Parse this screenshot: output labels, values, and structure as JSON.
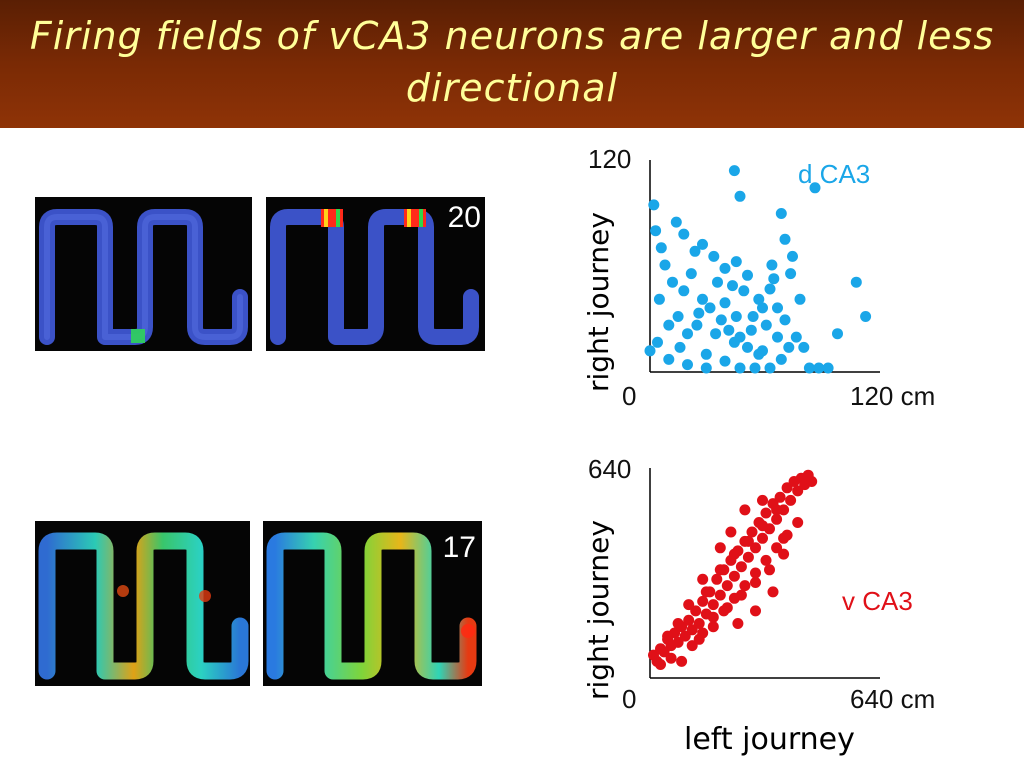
{
  "slide": {
    "title": "Firing fields of vCA3 neurons are larger and less directional",
    "shared_xlabel": "left journey"
  },
  "panels": {
    "top_right_number": "20",
    "bottom_right_number": "17"
  },
  "colors": {
    "title_text": "#ffff99",
    "title_bg": "#7a2a05",
    "dca3_points": "#1aa6e8",
    "vca3_points": "#e01018"
  },
  "chart_data": [
    {
      "type": "scatter",
      "title": "",
      "series": [
        {
          "name": "d CA3",
          "points": [
            [
              0,
              10
            ],
            [
              10,
              5
            ],
            [
              20,
              2
            ],
            [
              30,
              0
            ],
            [
              5,
              40
            ],
            [
              15,
              30
            ],
            [
              25,
              25
            ],
            [
              35,
              20
            ],
            [
              45,
              15
            ],
            [
              50,
              45
            ],
            [
              55,
              30
            ],
            [
              60,
              10
            ],
            [
              65,
              60
            ],
            [
              70,
              5
            ],
            [
              75,
              55
            ],
            [
              80,
              40
            ],
            [
              85,
              0
            ],
            [
              90,
              0
            ],
            [
              95,
              0
            ],
            [
              100,
              20
            ],
            [
              110,
              50
            ],
            [
              115,
              30
            ],
            [
              8,
              60
            ],
            [
              12,
              50
            ],
            [
              18,
              45
            ],
            [
              22,
              55
            ],
            [
              28,
              40
            ],
            [
              32,
              35
            ],
            [
              38,
              28
            ],
            [
              42,
              22
            ],
            [
              48,
              18
            ],
            [
              52,
              12
            ],
            [
              58,
              8
            ],
            [
              62,
              25
            ],
            [
              68,
              35
            ],
            [
              72,
              28
            ],
            [
              78,
              18
            ],
            [
              82,
              12
            ],
            [
              3,
              80
            ],
            [
              6,
              70
            ],
            [
              14,
              85
            ],
            [
              18,
              78
            ],
            [
              24,
              68
            ],
            [
              28,
              72
            ],
            [
              34,
              65
            ],
            [
              40,
              58
            ],
            [
              46,
              62
            ],
            [
              52,
              54
            ],
            [
              48,
              100
            ],
            [
              70,
              90
            ],
            [
              72,
              75
            ],
            [
              88,
              105
            ],
            [
              45,
              115
            ],
            [
              2,
              95
            ],
            [
              40,
              38
            ],
            [
              44,
              48
            ],
            [
              36,
              50
            ],
            [
              26,
              32
            ],
            [
              20,
              20
            ],
            [
              16,
              12
            ],
            [
              30,
              8
            ],
            [
              40,
              4
            ],
            [
              48,
              0
            ],
            [
              56,
              0
            ],
            [
              64,
              0
            ],
            [
              10,
              25
            ],
            [
              4,
              15
            ],
            [
              58,
              40
            ],
            [
              64,
              46
            ],
            [
              68,
              18
            ],
            [
              74,
              12
            ],
            [
              46,
              30
            ],
            [
              54,
              22
            ],
            [
              60,
              35
            ],
            [
              66,
              52
            ],
            [
              76,
              65
            ]
          ]
        }
      ],
      "xlabel": "left journey",
      "ylabel": "right journey",
      "xlim": [
        0,
        120
      ],
      "ylim": [
        0,
        120
      ],
      "x_ticks": [
        "0",
        "120 cm"
      ],
      "y_ticks": [
        "120"
      ],
      "annotation": "d CA3"
    },
    {
      "type": "scatter",
      "title": "",
      "series": [
        {
          "name": "v CA3",
          "points": [
            [
              10,
              60
            ],
            [
              20,
              40
            ],
            [
              30,
              80
            ],
            [
              40,
              70
            ],
            [
              50,
              110
            ],
            [
              60,
              90
            ],
            [
              70,
              130
            ],
            [
              80,
              100
            ],
            [
              90,
              150
            ],
            [
              100,
              120
            ],
            [
              110,
              170
            ],
            [
              120,
              140
            ],
            [
              130,
              200
            ],
            [
              140,
              160
            ],
            [
              150,
              230
            ],
            [
              160,
              190
            ],
            [
              170,
              260
            ],
            [
              180,
              220
            ],
            [
              190,
              300
            ],
            [
              200,
              250
            ],
            [
              210,
              330
            ],
            [
              220,
              280
            ],
            [
              230,
              360
            ],
            [
              240,
              310
            ],
            [
              250,
              390
            ],
            [
              260,
              340
            ],
            [
              270,
              420
            ],
            [
              280,
              370
            ],
            [
              290,
              450
            ],
            [
              300,
              400
            ],
            [
              310,
              480
            ],
            [
              320,
              430
            ],
            [
              330,
              510
            ],
            [
              340,
              460
            ],
            [
              350,
              540
            ],
            [
              360,
              490
            ],
            [
              370,
              560
            ],
            [
              380,
              520
            ],
            [
              390,
              590
            ],
            [
              400,
              550
            ],
            [
              410,
              610
            ],
            [
              420,
              580
            ],
            [
              430,
              620
            ],
            [
              440,
              600
            ],
            [
              450,
              630
            ],
            [
              460,
              610
            ],
            [
              30,
              30
            ],
            [
              60,
              50
            ],
            [
              90,
              40
            ],
            [
              120,
              90
            ],
            [
              150,
              130
            ],
            [
              180,
              150
            ],
            [
              210,
              200
            ],
            [
              240,
              240
            ],
            [
              270,
              280
            ],
            [
              300,
              320
            ],
            [
              330,
              360
            ],
            [
              360,
              400
            ],
            [
              390,
              440
            ],
            [
              420,
              480
            ],
            [
              160,
              260
            ],
            [
              200,
              330
            ],
            [
              240,
              380
            ],
            [
              280,
              420
            ],
            [
              320,
              470
            ],
            [
              360,
              520
            ],
            [
              140,
              110
            ],
            [
              180,
              180
            ],
            [
              220,
              210
            ],
            [
              260,
              250
            ],
            [
              300,
              290
            ],
            [
              340,
              330
            ],
            [
              380,
              380
            ],
            [
              250,
              160
            ],
            [
              300,
              200
            ],
            [
              350,
              260
            ],
            [
              380,
              430
            ],
            [
              320,
              550
            ],
            [
              270,
              520
            ],
            [
              230,
              450
            ],
            [
              200,
              400
            ],
            [
              150,
              300
            ],
            [
              110,
              220
            ],
            [
              80,
              160
            ],
            [
              50,
              120
            ]
          ]
        }
      ],
      "xlabel": "left journey",
      "ylabel": "right journey",
      "xlim": [
        0,
        640
      ],
      "ylim": [
        0,
        640
      ],
      "x_ticks": [
        "0",
        "640 cm"
      ],
      "y_ticks": [
        "640"
      ],
      "annotation": "v CA3"
    }
  ]
}
